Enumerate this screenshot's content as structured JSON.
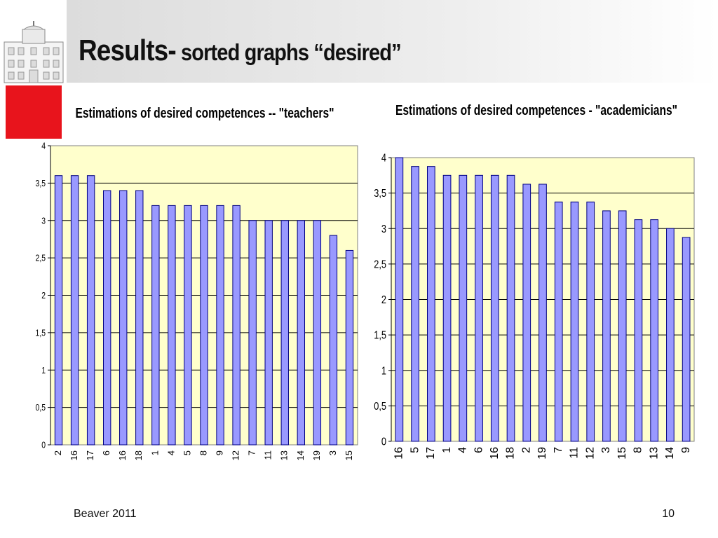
{
  "slide": {
    "title_main": "Results-",
    "title_sub": " sorted graphs “desired”",
    "footer_left": "Beaver 2011",
    "page_number": "10"
  },
  "colors": {
    "plot_bg": "#FFFFCC",
    "bar_fill": "#9999FF",
    "bar_stroke": "#000080",
    "logo_red": "#E8141C",
    "header_band": "#E4E4E4"
  },
  "chart_data": [
    {
      "type": "bar",
      "title": "Estimations of desired competences -- \"teachers\"",
      "categories": [
        "2",
        "16",
        "17",
        "6",
        "16",
        "18",
        "1",
        "4",
        "5",
        "8",
        "9",
        "12",
        "7",
        "11",
        "13",
        "14",
        "19",
        "3",
        "15"
      ],
      "values": [
        3.6,
        3.6,
        3.6,
        3.4,
        3.4,
        3.4,
        3.2,
        3.2,
        3.2,
        3.2,
        3.2,
        3.2,
        3.0,
        3.0,
        3.0,
        3.0,
        3.0,
        2.8,
        2.6
      ],
      "ylim": [
        0,
        4
      ],
      "yticks": [
        "0",
        "0,5",
        "1",
        "1,5",
        "2",
        "2,5",
        "3",
        "3,5",
        "4"
      ],
      "grid": true,
      "xlabel": "",
      "ylabel": ""
    },
    {
      "type": "bar",
      "title": "Estimations of desired competences - \"academicians\"",
      "categories": [
        "16",
        "5",
        "17",
        "1",
        "4",
        "6",
        "16",
        "18",
        "2",
        "19",
        "7",
        "11",
        "12",
        "3",
        "15",
        "8",
        "13",
        "14",
        "9"
      ],
      "values": [
        4.0,
        3.875,
        3.875,
        3.75,
        3.75,
        3.75,
        3.75,
        3.75,
        3.625,
        3.625,
        3.375,
        3.375,
        3.375,
        3.25,
        3.25,
        3.125,
        3.125,
        3.0,
        2.875
      ],
      "ylim": [
        0,
        4
      ],
      "yticks": [
        "0",
        "0,5",
        "1",
        "1,5",
        "2",
        "2,5",
        "3",
        "3,5",
        "4"
      ],
      "grid": true,
      "xlabel": "",
      "ylabel": ""
    }
  ]
}
